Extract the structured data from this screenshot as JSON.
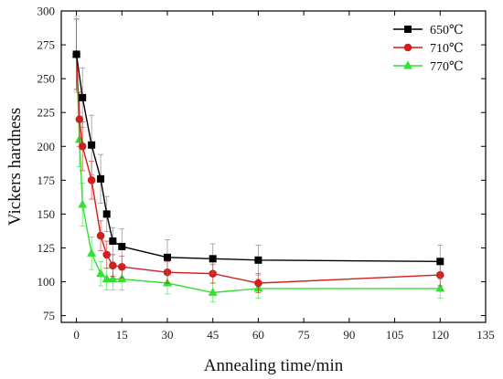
{
  "chart_data": {
    "type": "line",
    "title": "",
    "xlabel": "Annealing time/min",
    "ylabel": "Vickers hardness",
    "xlim": [
      -5,
      135
    ],
    "ylim": [
      70,
      300
    ],
    "xticks": [
      0,
      15,
      30,
      45,
      60,
      75,
      90,
      105,
      120,
      135
    ],
    "yticks": [
      75,
      100,
      125,
      150,
      175,
      200,
      225,
      250,
      275,
      300
    ],
    "grid": false,
    "legend_position": "top-right",
    "series": [
      {
        "name": "650℃",
        "color": "#000000",
        "marker": "square",
        "x": [
          0,
          2,
          5,
          8,
          10,
          12,
          15,
          30,
          45,
          60,
          120
        ],
        "y": [
          268,
          236,
          201,
          176,
          150,
          130,
          126,
          118,
          117,
          116,
          115
        ],
        "err": [
          26,
          22,
          22,
          18,
          13,
          10,
          13,
          13,
          11,
          11,
          12
        ]
      },
      {
        "name": "710℃",
        "color": "#d21e1e",
        "marker": "circle",
        "x": [
          0,
          1,
          2,
          5,
          8,
          10,
          12,
          15,
          30,
          45,
          60,
          120
        ],
        "y": [
          268,
          220,
          200,
          175,
          134,
          120,
          112,
          111,
          107,
          106,
          99,
          105
        ],
        "err": [
          26,
          20,
          18,
          14,
          11,
          10,
          8,
          8,
          8,
          7,
          7,
          8
        ]
      },
      {
        "name": "770℃",
        "color": "#33e033",
        "marker": "triangle",
        "x": [
          0,
          1,
          2,
          5,
          8,
          10,
          12,
          15,
          30,
          45,
          60,
          120
        ],
        "y": [
          268,
          205,
          157,
          121,
          106,
          102,
          102,
          102,
          99,
          92,
          95,
          95
        ],
        "err": [
          28,
          20,
          16,
          12,
          9,
          8,
          8,
          8,
          8,
          7,
          7,
          7
        ]
      }
    ]
  }
}
